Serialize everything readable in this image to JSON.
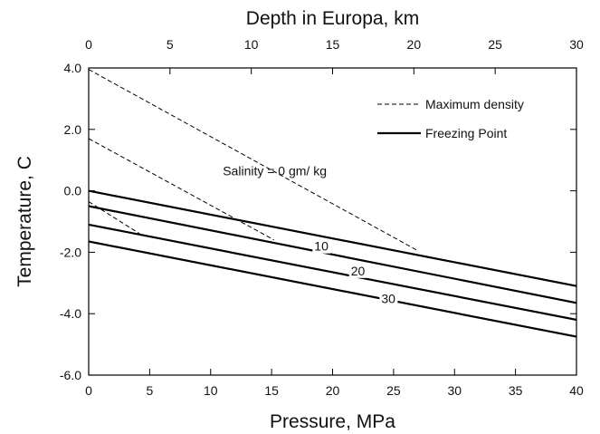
{
  "chart_data": {
    "type": "line",
    "top_axis": {
      "label": "Depth in Europa, km",
      "range": [
        0,
        30
      ],
      "ticks": [
        0,
        5,
        10,
        15,
        20,
        25,
        30
      ],
      "tick_labels": [
        "0",
        "5",
        "10",
        "15",
        "20",
        "25",
        "30"
      ]
    },
    "xlabel": "Pressure, MPa",
    "ylabel": "Temperature, C",
    "xlim": [
      0,
      40
    ],
    "ylim": [
      -6,
      4
    ],
    "x_ticks": [
      0,
      5,
      10,
      15,
      20,
      25,
      30,
      35,
      40
    ],
    "x_tick_labels": [
      "0",
      "5",
      "10",
      "15",
      "20",
      "25",
      "30",
      "35",
      "40"
    ],
    "y_ticks": [
      -6,
      -4,
      -2,
      0,
      2,
      4
    ],
    "y_tick_labels": [
      "-6.0",
      "-4.0",
      "-2.0",
      "0.0",
      "2.0",
      "4.0"
    ],
    "grid": false,
    "legend_position": "top-right",
    "legend": [
      {
        "label": "Maximum density",
        "style": "dashed"
      },
      {
        "label": "Freezing Point",
        "style": "solid"
      }
    ],
    "series": [
      {
        "style": "solid",
        "x": [
          0,
          40
        ],
        "y": [
          0.0,
          -3.1
        ]
      },
      {
        "style": "solid",
        "x": [
          0,
          40
        ],
        "y": [
          -0.5,
          -3.65
        ]
      },
      {
        "style": "solid",
        "x": [
          0,
          40
        ],
        "y": [
          -1.1,
          -4.2
        ]
      },
      {
        "style": "solid",
        "x": [
          0,
          40
        ],
        "y": [
          -1.65,
          -4.75
        ]
      },
      {
        "style": "dashed",
        "x": [
          0,
          27.0
        ],
        "y": [
          3.95,
          -1.95
        ]
      },
      {
        "style": "dashed",
        "x": [
          0,
          15.2
        ],
        "y": [
          1.7,
          -1.6
        ]
      },
      {
        "style": "dashed",
        "x": [
          0,
          4.2
        ],
        "y": [
          -0.35,
          -1.4
        ]
      }
    ],
    "annotations": [
      {
        "text": "Salinity = 0   gm/ kg",
        "x": 11.0,
        "y": 0.5
      },
      {
        "text": "10",
        "x": 18.5,
        "y": -1.95
      },
      {
        "text": "20",
        "x": 21.5,
        "y": -2.75
      },
      {
        "text": "30",
        "x": 24.0,
        "y": -3.65
      }
    ]
  }
}
